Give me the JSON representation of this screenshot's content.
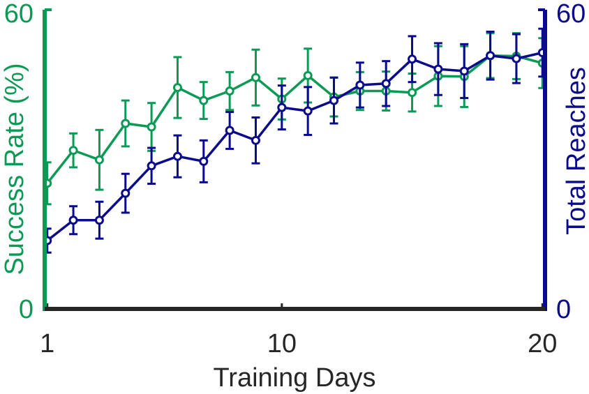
{
  "chart_data": {
    "type": "line",
    "xlabel": "Training Days",
    "x_tick_labels": [
      "1",
      "10",
      "20"
    ],
    "x_ticks": [
      1,
      10,
      20
    ],
    "xlim": [
      0.9,
      20.1
    ],
    "left_axis": {
      "label": "Success Rate (%)",
      "ylim": [
        0,
        60
      ],
      "tick_labels": [
        "0",
        "60"
      ],
      "color": "#0a9a55"
    },
    "right_axis": {
      "label": "Total Reaches",
      "ylim": [
        0,
        60
      ],
      "tick_labels": [
        "0",
        "60"
      ],
      "color": "#0a0a8c"
    },
    "x": [
      1,
      2,
      3,
      4,
      5,
      6,
      7,
      8,
      9,
      10,
      11,
      12,
      13,
      14,
      15,
      16,
      17,
      18,
      19,
      20
    ],
    "series": [
      {
        "axis": "left",
        "color": "#0a9a55",
        "values": [
          25.2,
          31.8,
          29.9,
          37.2,
          36.5,
          44.4,
          41.8,
          43.7,
          46.4,
          42.1,
          46.8,
          42.5,
          43.7,
          43.7,
          43.4,
          46.7,
          46.6,
          50.8,
          50.7,
          49.3
        ],
        "error": [
          4.2,
          3.4,
          6.0,
          4.6,
          4.8,
          6.1,
          3.7,
          3.8,
          5.6,
          4.1,
          5.4,
          3.9,
          3.8,
          3.9,
          3.8,
          6.0,
          6.1,
          4.5,
          4.6,
          5.0
        ]
      },
      {
        "axis": "right",
        "color": "#0a0a8c",
        "values": [
          13.7,
          17.8,
          17.8,
          23.2,
          28.7,
          30.6,
          29.6,
          35.8,
          33.8,
          40.4,
          39.7,
          41.8,
          44.9,
          45.2,
          50.1,
          48.1,
          47.7,
          50.8,
          50.2,
          51.4
        ],
        "error": [
          2.4,
          2.8,
          3.7,
          3.9,
          3.6,
          4.2,
          4.2,
          3.7,
          4.6,
          4.4,
          4.8,
          4.6,
          4.5,
          4.5,
          4.6,
          5.2,
          5.4,
          4.8,
          4.9,
          4.8
        ]
      }
    ],
    "axis_color": "#262626",
    "grid": false,
    "legend": "none"
  }
}
